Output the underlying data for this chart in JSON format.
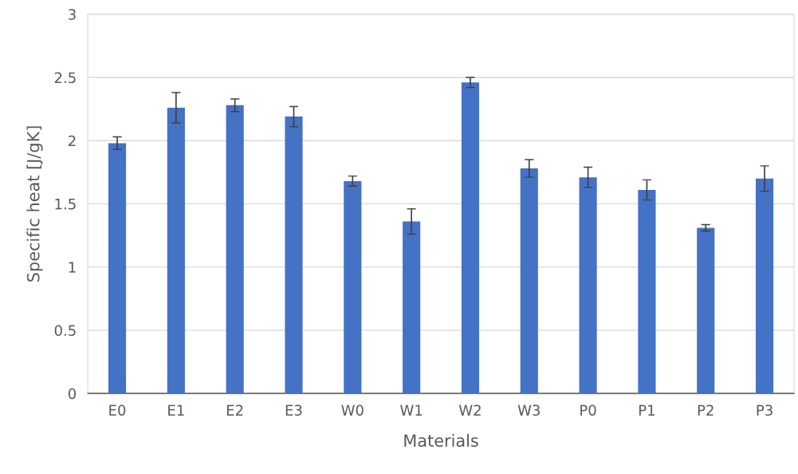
{
  "chart_data": {
    "type": "bar",
    "xlabel": "Materials",
    "ylabel": "Specific heat [J/gK]",
    "categories": [
      "E0",
      "E1",
      "E2",
      "E3",
      "W0",
      "W1",
      "W2",
      "W3",
      "P0",
      "P1",
      "P2",
      "P3"
    ],
    "values": [
      1.98,
      2.26,
      2.28,
      2.19,
      1.68,
      1.36,
      2.46,
      1.78,
      1.71,
      1.61,
      1.31,
      1.7
    ],
    "errors": [
      0.05,
      0.12,
      0.05,
      0.08,
      0.04,
      0.1,
      0.04,
      0.07,
      0.08,
      0.08,
      0.025,
      0.1
    ],
    "color": "#4472c4",
    "ylim": [
      0,
      3
    ],
    "yticks": [
      0,
      0.5,
      1,
      1.5,
      2,
      2.5,
      3
    ],
    "grid": "y",
    "legend": false
  }
}
